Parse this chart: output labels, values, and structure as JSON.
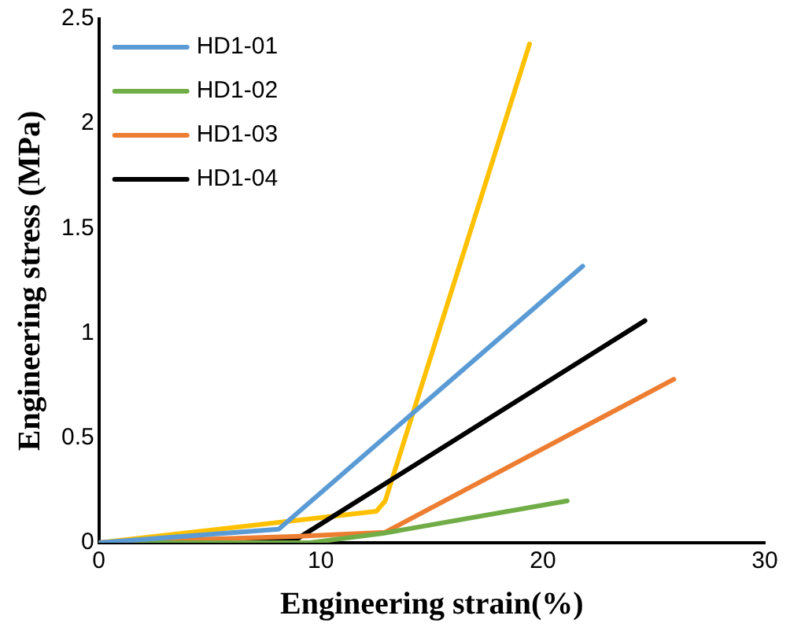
{
  "chart_data": {
    "type": "line",
    "xlabel": "Engineering strain(%)",
    "ylabel": "Engineering stress (MPa)",
    "xlim": [
      0,
      30
    ],
    "xticks": [
      0,
      10,
      20,
      30
    ],
    "ylim": [
      0,
      2.5
    ],
    "yticks": [
      0,
      0.5,
      1,
      1.5,
      2,
      2.5
    ],
    "grid": false,
    "legend": "top left",
    "marker": "none",
    "line_style": "solid",
    "series": [
      {
        "name": "HD1-01",
        "color": "#5b9bd5",
        "x": [
          0,
          8.1,
          21.8
        ],
        "values": [
          0,
          0.065,
          1.32
        ]
      },
      {
        "name": "HD1-02",
        "color": "#70ad47",
        "x": [
          0,
          9.5,
          12.8,
          21.1
        ],
        "values": [
          0,
          0,
          0.045,
          0.2
        ]
      },
      {
        "name": "HD1-03",
        "color": "#ed7d31",
        "x": [
          0,
          8.8,
          12.9,
          25.9
        ],
        "values": [
          0,
          0.03,
          0.05,
          0.78
        ]
      },
      {
        "name": "HD1-04",
        "color": "#000000",
        "x": [
          0,
          8.8,
          24.6
        ],
        "values": [
          0,
          0.01,
          1.06
        ]
      },
      {
        "color": "#ffc000",
        "x": [
          0,
          12.5,
          12.9,
          19.4
        ],
        "values": [
          0,
          0.15,
          0.2,
          2.38
        ]
      }
    ]
  }
}
